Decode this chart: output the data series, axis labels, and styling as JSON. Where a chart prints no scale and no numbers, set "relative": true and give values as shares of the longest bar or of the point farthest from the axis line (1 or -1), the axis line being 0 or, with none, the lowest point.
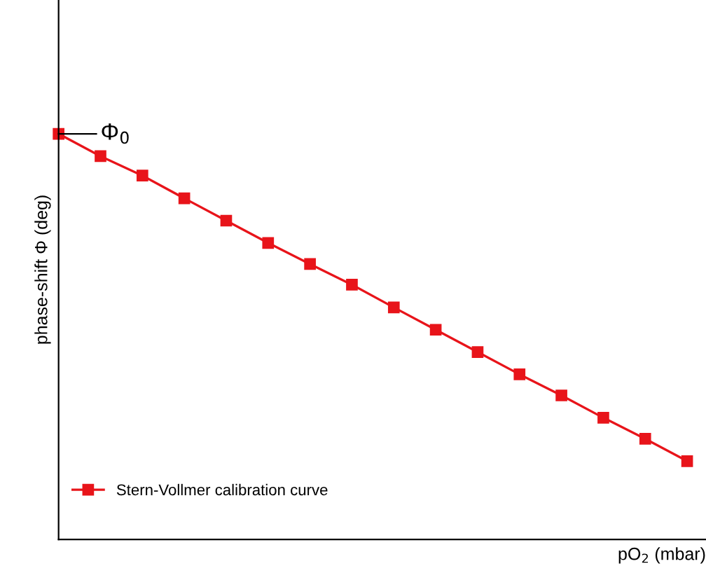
{
  "chart_data": {
    "type": "line",
    "relative": true,
    "xlabel": "pO$_{2}$ (mbar)",
    "ylabel": "phase-shift Φ (deg)",
    "categories": [
      null,
      null,
      null,
      null,
      null,
      null,
      null,
      null,
      null,
      null,
      null,
      null,
      null,
      null,
      null,
      null
    ],
    "series": [
      {
        "name": "Stern-Vollmer calibration curve",
        "color": "#e8141a",
        "values": [
          1,
          0.945,
          0.897,
          0.841,
          0.786,
          0.731,
          0.679,
          0.628,
          0.572,
          0.517,
          0.462,
          0.407,
          0.355,
          0.3,
          0.248,
          0.193
        ]
      }
    ],
    "annotations": [
      "Φ$_{0}$"
    ],
    "marker": "square",
    "line_style": "solid",
    "legend": "bottom left"
  }
}
